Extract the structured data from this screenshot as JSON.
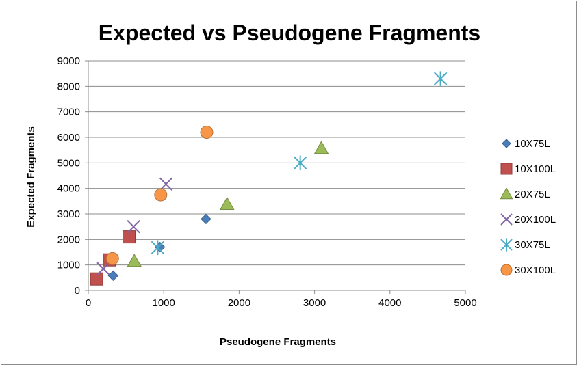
{
  "chart_data": {
    "type": "scatter",
    "title": "Expected vs Pseudogene Fragments",
    "xlabel": "Pseudogene Fragments",
    "ylabel": "Expected Fragments",
    "xlim": [
      0,
      5000
    ],
    "ylim": [
      0,
      9000
    ],
    "xticks": [
      0,
      1000,
      2000,
      3000,
      4000,
      5000
    ],
    "yticks": [
      0,
      1000,
      2000,
      3000,
      4000,
      5000,
      6000,
      7000,
      8000,
      9000
    ],
    "grid": "horizontal",
    "legend_position": "right",
    "series": [
      {
        "name": "10X75L",
        "marker": "diamond",
        "color": "#4a7ebb",
        "points": [
          [
            330,
            580
          ],
          [
            950,
            1700
          ],
          [
            1560,
            2800
          ]
        ]
      },
      {
        "name": "10X100L",
        "marker": "square",
        "color": "#c0504d",
        "points": [
          [
            110,
            450
          ],
          [
            280,
            1200
          ],
          [
            540,
            2100
          ]
        ]
      },
      {
        "name": "20X75L",
        "marker": "triangle",
        "color": "#9bbb59",
        "points": [
          [
            610,
            1150
          ],
          [
            1840,
            3380
          ],
          [
            3090,
            5570
          ]
        ]
      },
      {
        "name": "20X100L",
        "marker": "x",
        "color": "#8064a2",
        "points": [
          [
            200,
            850
          ],
          [
            600,
            2500
          ],
          [
            1030,
            4170
          ]
        ]
      },
      {
        "name": "30X75L",
        "marker": "star",
        "color": "#4bacc6",
        "points": [
          [
            920,
            1680
          ],
          [
            2810,
            5000
          ],
          [
            4670,
            8300
          ]
        ]
      },
      {
        "name": "30X100L",
        "marker": "circle",
        "color": "#f79646",
        "points": [
          [
            320,
            1250
          ],
          [
            960,
            3750
          ],
          [
            1570,
            6200
          ]
        ]
      }
    ]
  }
}
